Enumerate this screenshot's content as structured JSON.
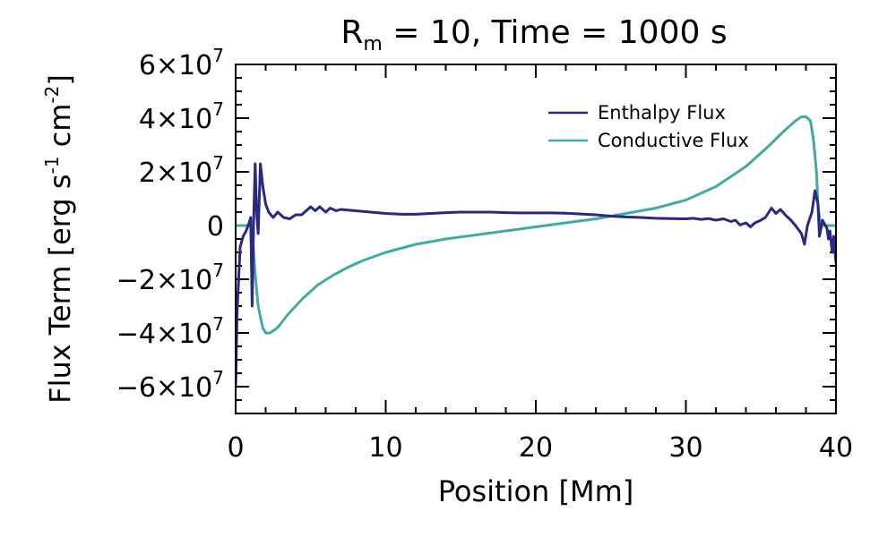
{
  "chart_data": {
    "type": "line",
    "title": {
      "prefix": "R",
      "subscript": "m",
      "rest": " = 10, Time = 1000 s"
    },
    "xlabel": "Position [Mm]",
    "ylabel": {
      "main": "Flux Term [erg s",
      "sup1": "-1",
      "mid": " cm",
      "sup2": "-2",
      "end": "]"
    },
    "xlim": [
      0,
      40
    ],
    "ylim": [
      -70000000,
      60000000
    ],
    "x_ticks": [
      {
        "value": 0,
        "label": "0"
      },
      {
        "value": 10,
        "label": "10"
      },
      {
        "value": 20,
        "label": "20"
      },
      {
        "value": 30,
        "label": "30"
      },
      {
        "value": 40,
        "label": "40"
      }
    ],
    "y_ticks": [
      {
        "value": 60000000,
        "mant": "6×10",
        "exp": "7"
      },
      {
        "value": 40000000,
        "mant": "4×10",
        "exp": "7"
      },
      {
        "value": 20000000,
        "mant": "2×10",
        "exp": "7"
      },
      {
        "value": 0,
        "mant": "0",
        "exp": ""
      },
      {
        "value": -20000000,
        "mant": "−2×10",
        "exp": "7"
      },
      {
        "value": -40000000,
        "mant": "−4×10",
        "exp": "7"
      },
      {
        "value": -60000000,
        "mant": "−6×10",
        "exp": "7"
      }
    ],
    "grid": false,
    "legend_position": "top-right",
    "series": [
      {
        "name": "Enthalpy Flux",
        "color": "#2b2a7e",
        "points": [
          [
            0.0,
            -60000000
          ],
          [
            0.1,
            -32000000
          ],
          [
            0.3,
            -8000000
          ],
          [
            0.5,
            -4000000
          ],
          [
            0.7,
            -2000000
          ],
          [
            0.9,
            1000000
          ],
          [
            1.0,
            3000000
          ],
          [
            1.1,
            -30000000
          ],
          [
            1.2,
            2000000
          ],
          [
            1.3,
            23000000
          ],
          [
            1.4,
            5000000
          ],
          [
            1.5,
            -3000000
          ],
          [
            1.65,
            23000000
          ],
          [
            1.8,
            15000000
          ],
          [
            2.0,
            8000000
          ],
          [
            2.2,
            5000000
          ],
          [
            2.5,
            3000000
          ],
          [
            2.8,
            5000000
          ],
          [
            3.2,
            3000000
          ],
          [
            3.6,
            2500000
          ],
          [
            4.0,
            4000000
          ],
          [
            4.4,
            4000000
          ],
          [
            4.7,
            5500000
          ],
          [
            5.0,
            7000000
          ],
          [
            5.3,
            5500000
          ],
          [
            5.6,
            7000000
          ],
          [
            6.0,
            5000000
          ],
          [
            6.3,
            6500000
          ],
          [
            6.7,
            5500000
          ],
          [
            7.0,
            6000000
          ],
          [
            8.0,
            5500000
          ],
          [
            9.0,
            5000000
          ],
          [
            10.0,
            4500000
          ],
          [
            11.0,
            4200000
          ],
          [
            12.0,
            4200000
          ],
          [
            13.0,
            4500000
          ],
          [
            14.0,
            4800000
          ],
          [
            15.0,
            5000000
          ],
          [
            16.0,
            5000000
          ],
          [
            17.0,
            5000000
          ],
          [
            18.0,
            4800000
          ],
          [
            19.0,
            4700000
          ],
          [
            20.0,
            4700000
          ],
          [
            21.0,
            4700000
          ],
          [
            22.0,
            4600000
          ],
          [
            23.0,
            4300000
          ],
          [
            24.0,
            4000000
          ],
          [
            25.0,
            3500000
          ],
          [
            26.0,
            3200000
          ],
          [
            27.0,
            3000000
          ],
          [
            28.0,
            2700000
          ],
          [
            29.0,
            2600000
          ],
          [
            30.0,
            2500000
          ],
          [
            30.5,
            2700000
          ],
          [
            31.0,
            2300000
          ],
          [
            31.5,
            2600000
          ],
          [
            32.0,
            2000000
          ],
          [
            32.5,
            2500000
          ],
          [
            33.0,
            1500000
          ],
          [
            33.3,
            2000000
          ],
          [
            33.6,
            200000
          ],
          [
            34.0,
            1000000
          ],
          [
            34.3,
            -500000
          ],
          [
            34.6,
            1000000
          ],
          [
            35.0,
            2000000
          ],
          [
            35.3,
            3000000
          ],
          [
            35.7,
            6500000
          ],
          [
            36.0,
            4500000
          ],
          [
            36.3,
            6000000
          ],
          [
            36.7,
            3500000
          ],
          [
            37.0,
            2000000
          ],
          [
            37.3,
            0
          ],
          [
            37.7,
            -3000000
          ],
          [
            37.9,
            -7000000
          ],
          [
            38.1,
            0
          ],
          [
            38.4,
            5000000
          ],
          [
            38.6,
            13000000
          ],
          [
            38.8,
            8000000
          ],
          [
            38.9,
            -4000000
          ],
          [
            39.0,
            -1000000
          ],
          [
            39.1,
            2000000
          ],
          [
            39.2,
            1000000
          ],
          [
            39.4,
            -1000000
          ],
          [
            39.5,
            -5000000
          ],
          [
            39.6,
            -2000000
          ],
          [
            39.75,
            -10000000
          ],
          [
            39.85,
            -4000000
          ],
          [
            40.0,
            -14000000
          ]
        ]
      },
      {
        "name": "Conductive Flux",
        "color": "#45aa9f",
        "points": [
          [
            0.0,
            0
          ],
          [
            1.0,
            0
          ],
          [
            1.15,
            -6000000
          ],
          [
            1.3,
            -18000000
          ],
          [
            1.5,
            -30000000
          ],
          [
            1.8,
            -38000000
          ],
          [
            2.0,
            -40000000
          ],
          [
            2.3,
            -40000000
          ],
          [
            2.8,
            -38000000
          ],
          [
            3.5,
            -33000000
          ],
          [
            4.5,
            -27000000
          ],
          [
            5.5,
            -22000000
          ],
          [
            6.5,
            -18500000
          ],
          [
            7.5,
            -15500000
          ],
          [
            8.5,
            -13000000
          ],
          [
            10.0,
            -10000000
          ],
          [
            12.0,
            -7000000
          ],
          [
            14.0,
            -5000000
          ],
          [
            16.0,
            -3500000
          ],
          [
            18.0,
            -2000000
          ],
          [
            20.0,
            -500000
          ],
          [
            22.0,
            1000000
          ],
          [
            24.0,
            2500000
          ],
          [
            26.0,
            4500000
          ],
          [
            28.0,
            6500000
          ],
          [
            30.0,
            9500000
          ],
          [
            32.0,
            14500000
          ],
          [
            34.0,
            22000000
          ],
          [
            35.5,
            29500000
          ],
          [
            36.5,
            35000000
          ],
          [
            37.3,
            39000000
          ],
          [
            37.7,
            40500000
          ],
          [
            38.0,
            40500000
          ],
          [
            38.3,
            39000000
          ],
          [
            38.5,
            32000000
          ],
          [
            38.7,
            20000000
          ],
          [
            38.8,
            8000000
          ],
          [
            38.95,
            1000000
          ],
          [
            39.1,
            0
          ],
          [
            40.0,
            0
          ]
        ]
      }
    ]
  }
}
